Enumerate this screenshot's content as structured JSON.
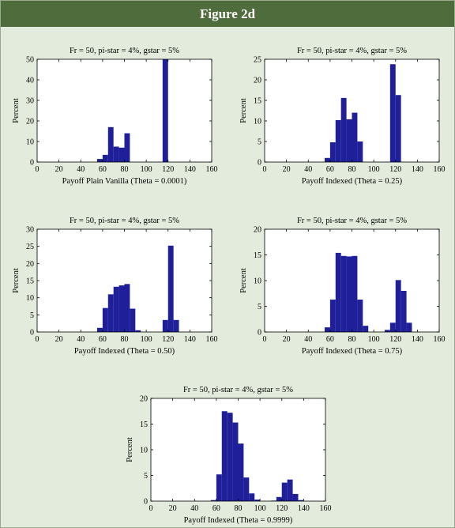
{
  "page": {
    "title": "Figure 2d",
    "background": "#e3ebdc",
    "banner_color": "#4f6d3c",
    "bar_color": "#1f1f99"
  },
  "chart_data": [
    {
      "type": "bar",
      "title": "Fr = 50, pi-star = 4%, gstar = 5%",
      "xlabel": "Payoff Plain Vanilla (Theta = 0.0001)",
      "ylabel": "Percent",
      "xlim": [
        0,
        160
      ],
      "ylim": [
        0,
        50
      ],
      "xticks": [
        0,
        20,
        40,
        60,
        80,
        100,
        120,
        140,
        160
      ],
      "yticks": [
        0,
        10,
        20,
        30,
        40,
        50
      ],
      "bin_width": 5,
      "bins": [
        57.5,
        62.5,
        67.5,
        72.5,
        77.5,
        82.5,
        117.5
      ],
      "values": [
        1.5,
        3.5,
        17,
        7.5,
        7,
        14,
        50
      ]
    },
    {
      "type": "bar",
      "title": "Fr = 50, pi-star = 4%, gstar = 5%",
      "xlabel": "Payoff Indexed (Theta = 0.25)",
      "ylabel": "Percent",
      "xlim": [
        0,
        160
      ],
      "ylim": [
        0,
        25
      ],
      "xticks": [
        0,
        20,
        40,
        60,
        80,
        100,
        120,
        140,
        160
      ],
      "yticks": [
        0,
        5,
        10,
        15,
        20,
        25
      ],
      "bin_width": 5,
      "bins": [
        57.5,
        62.5,
        67.5,
        72.5,
        77.5,
        82.5,
        87.5,
        117.5,
        122.5
      ],
      "values": [
        1,
        4.8,
        10.2,
        15.6,
        10.4,
        12,
        5,
        23.8,
        16.3
      ]
    },
    {
      "type": "bar",
      "title": "Fr = 50, pi-star = 4%, gstar = 5%",
      "xlabel": "Payoff Indexed (Theta = 0.50)",
      "ylabel": "Percent",
      "xlim": [
        0,
        160
      ],
      "ylim": [
        0,
        30
      ],
      "xticks": [
        0,
        20,
        40,
        60,
        80,
        100,
        120,
        140,
        160
      ],
      "yticks": [
        0,
        5,
        10,
        15,
        20,
        25,
        30
      ],
      "bin_width": 5,
      "bins": [
        57.5,
        62.5,
        67.5,
        72.5,
        77.5,
        82.5,
        87.5,
        92.5,
        117.5,
        122.5,
        127.5
      ],
      "values": [
        1.2,
        7,
        11,
        13.2,
        13.6,
        14,
        6.8,
        0.5,
        3.5,
        25.2,
        3.5
      ]
    },
    {
      "type": "bar",
      "title": "Fr = 50, pi-star = 4%, gstar = 5%",
      "xlabel": "Payoff Indexed (Theta = 0.75)",
      "ylabel": "Percent",
      "xlim": [
        0,
        160
      ],
      "ylim": [
        0,
        20
      ],
      "xticks": [
        0,
        20,
        40,
        60,
        80,
        100,
        120,
        140,
        160
      ],
      "yticks": [
        0,
        5,
        10,
        15,
        20
      ],
      "bin_width": 5,
      "bins": [
        57.5,
        62.5,
        67.5,
        72.5,
        77.5,
        82.5,
        87.5,
        92.5,
        112.5,
        117.5,
        122.5,
        127.5,
        132.5
      ],
      "values": [
        0.9,
        6.3,
        15.4,
        14.8,
        14.7,
        14.8,
        6.3,
        1.2,
        0.4,
        1.8,
        10.1,
        8,
        1.8
      ]
    },
    {
      "type": "bar",
      "title": "Fr = 50, pi-star = 4%, gstar = 5%",
      "xlabel": "Payoff Indexed (Theta = 0.9999)",
      "ylabel": "Percent",
      "xlim": [
        0,
        160
      ],
      "ylim": [
        0,
        20
      ],
      "xticks": [
        0,
        20,
        40,
        60,
        80,
        100,
        120,
        140,
        160
      ],
      "yticks": [
        0,
        5,
        10,
        15,
        20
      ],
      "bin_width": 5,
      "bins": [
        57.5,
        62.5,
        67.5,
        72.5,
        77.5,
        82.5,
        87.5,
        92.5,
        97.5,
        112.5,
        117.5,
        122.5,
        127.5,
        132.5,
        137.5
      ],
      "values": [
        0.2,
        5.2,
        17.5,
        17.2,
        15.3,
        11.2,
        4.6,
        1.5,
        0.3,
        0.1,
        0.8,
        3.6,
        4.2,
        1.4,
        0.2
      ]
    }
  ]
}
